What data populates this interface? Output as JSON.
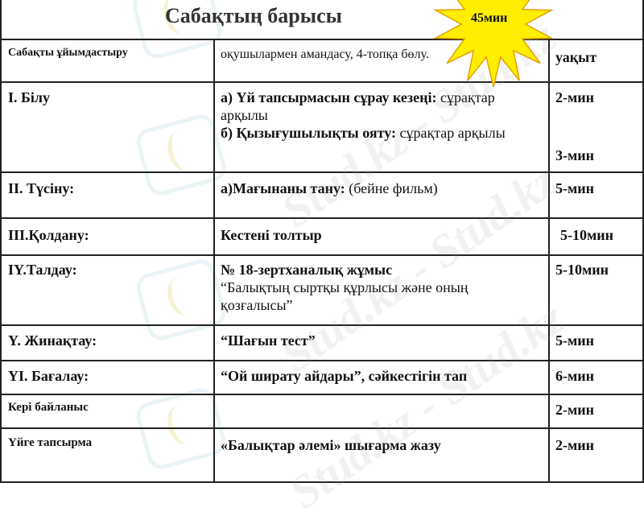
{
  "title": "Сабақтың барысы",
  "badge": {
    "label": "45мин",
    "color": "#ffee00"
  },
  "watermark": "Stud.kz - Stud.kz",
  "rows": [
    {
      "stage": "Сабақты ұйымдастыру",
      "content_normal": "оқушылармен амандасу, 4-топқа бөлу.",
      "time": "уақыт"
    },
    {
      "stage": "I. Білу",
      "content_a_bold": "а) Үй тапсырмасын сұрау кезеңі:",
      "content_a_normal": " сұрақтар арқылы",
      "content_b_bold": "б) Қызығушылықты ояту:",
      "content_b_normal": " сұрақтар арқылы",
      "time": "2-мин",
      "time2": "3-мин"
    },
    {
      "stage": "II. Түсіну:",
      "content_bold": "а)Мағынаны тану:",
      "content_normal": " (бейне фильм)",
      "time": "5-мин"
    },
    {
      "stage": "III.Қолдану:",
      "content_bold": "Кестені толтыр",
      "time": "5-10мин"
    },
    {
      "stage": "IY.Талдау:",
      "content_bold": "№ 18-зертханалық жұмыс",
      "content_normal": "“Балықтың сыртқы құрлысы және оның қозғалысы”",
      "time": "5-10мин"
    },
    {
      "stage": "Y. Жинақтау:",
      "content_bold": "“Шағын тест”",
      "time": "5-мин"
    },
    {
      "stage": "YI. Бағалау:",
      "content_bold": "“Ой ширату айдары”, сәйкестігін тап",
      "time": "6-мин"
    },
    {
      "stage": "Кері байланыс",
      "time": "2-мин"
    },
    {
      "stage": "Үйге тапсырма",
      "content_bold": "«Балықтар әлемі» шығарма жазу",
      "time": "2-мин"
    }
  ]
}
